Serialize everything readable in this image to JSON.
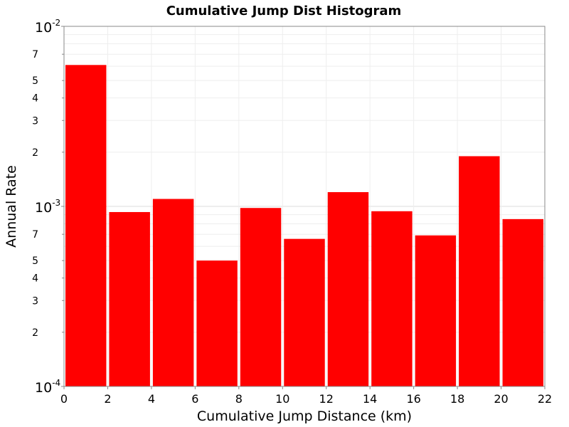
{
  "chart_data": {
    "type": "bar",
    "title": "Cumulative Jump Dist Histogram",
    "xlabel": "Cumulative Jump Distance (km)",
    "ylabel": "Annual Rate",
    "yscale": "log",
    "xlim": [
      0,
      22
    ],
    "ylim": [
      0.0001,
      0.01
    ],
    "bar_color": "#ff0000",
    "grid": true,
    "x_ticks": [
      "0",
      "2",
      "4",
      "6",
      "8",
      "10",
      "12",
      "14",
      "16",
      "18",
      "20",
      "22"
    ],
    "y_major_ticks": [
      {
        "value": 0.0001,
        "base": "10",
        "exp": "-4"
      },
      {
        "value": 0.001,
        "base": "10",
        "exp": "-3"
      },
      {
        "value": 0.01,
        "base": "10",
        "exp": "-2"
      }
    ],
    "y_minor_labels": [
      {
        "value": 0.0002,
        "label": "2"
      },
      {
        "value": 0.0003,
        "label": "3"
      },
      {
        "value": 0.0004,
        "label": "4"
      },
      {
        "value": 0.0005,
        "label": "5"
      },
      {
        "value": 0.0007,
        "label": "7"
      },
      {
        "value": 0.002,
        "label": "2"
      },
      {
        "value": 0.003,
        "label": "3"
      },
      {
        "value": 0.004,
        "label": "4"
      },
      {
        "value": 0.005,
        "label": "5"
      },
      {
        "value": 0.007,
        "label": "7"
      }
    ],
    "bins": [
      {
        "start": 0,
        "end": 2,
        "value": 0.0061
      },
      {
        "start": 2,
        "end": 4,
        "value": 0.00093
      },
      {
        "start": 4,
        "end": 6,
        "value": 0.0011
      },
      {
        "start": 6,
        "end": 8,
        "value": 0.0005
      },
      {
        "start": 8,
        "end": 10,
        "value": 0.00098
      },
      {
        "start": 10,
        "end": 12,
        "value": 0.00066
      },
      {
        "start": 12,
        "end": 14,
        "value": 0.0012
      },
      {
        "start": 14,
        "end": 16,
        "value": 0.00094
      },
      {
        "start": 16,
        "end": 18,
        "value": 0.00069
      },
      {
        "start": 18,
        "end": 20,
        "value": 0.0019
      },
      {
        "start": 20,
        "end": 22,
        "value": 0.00085
      }
    ]
  }
}
